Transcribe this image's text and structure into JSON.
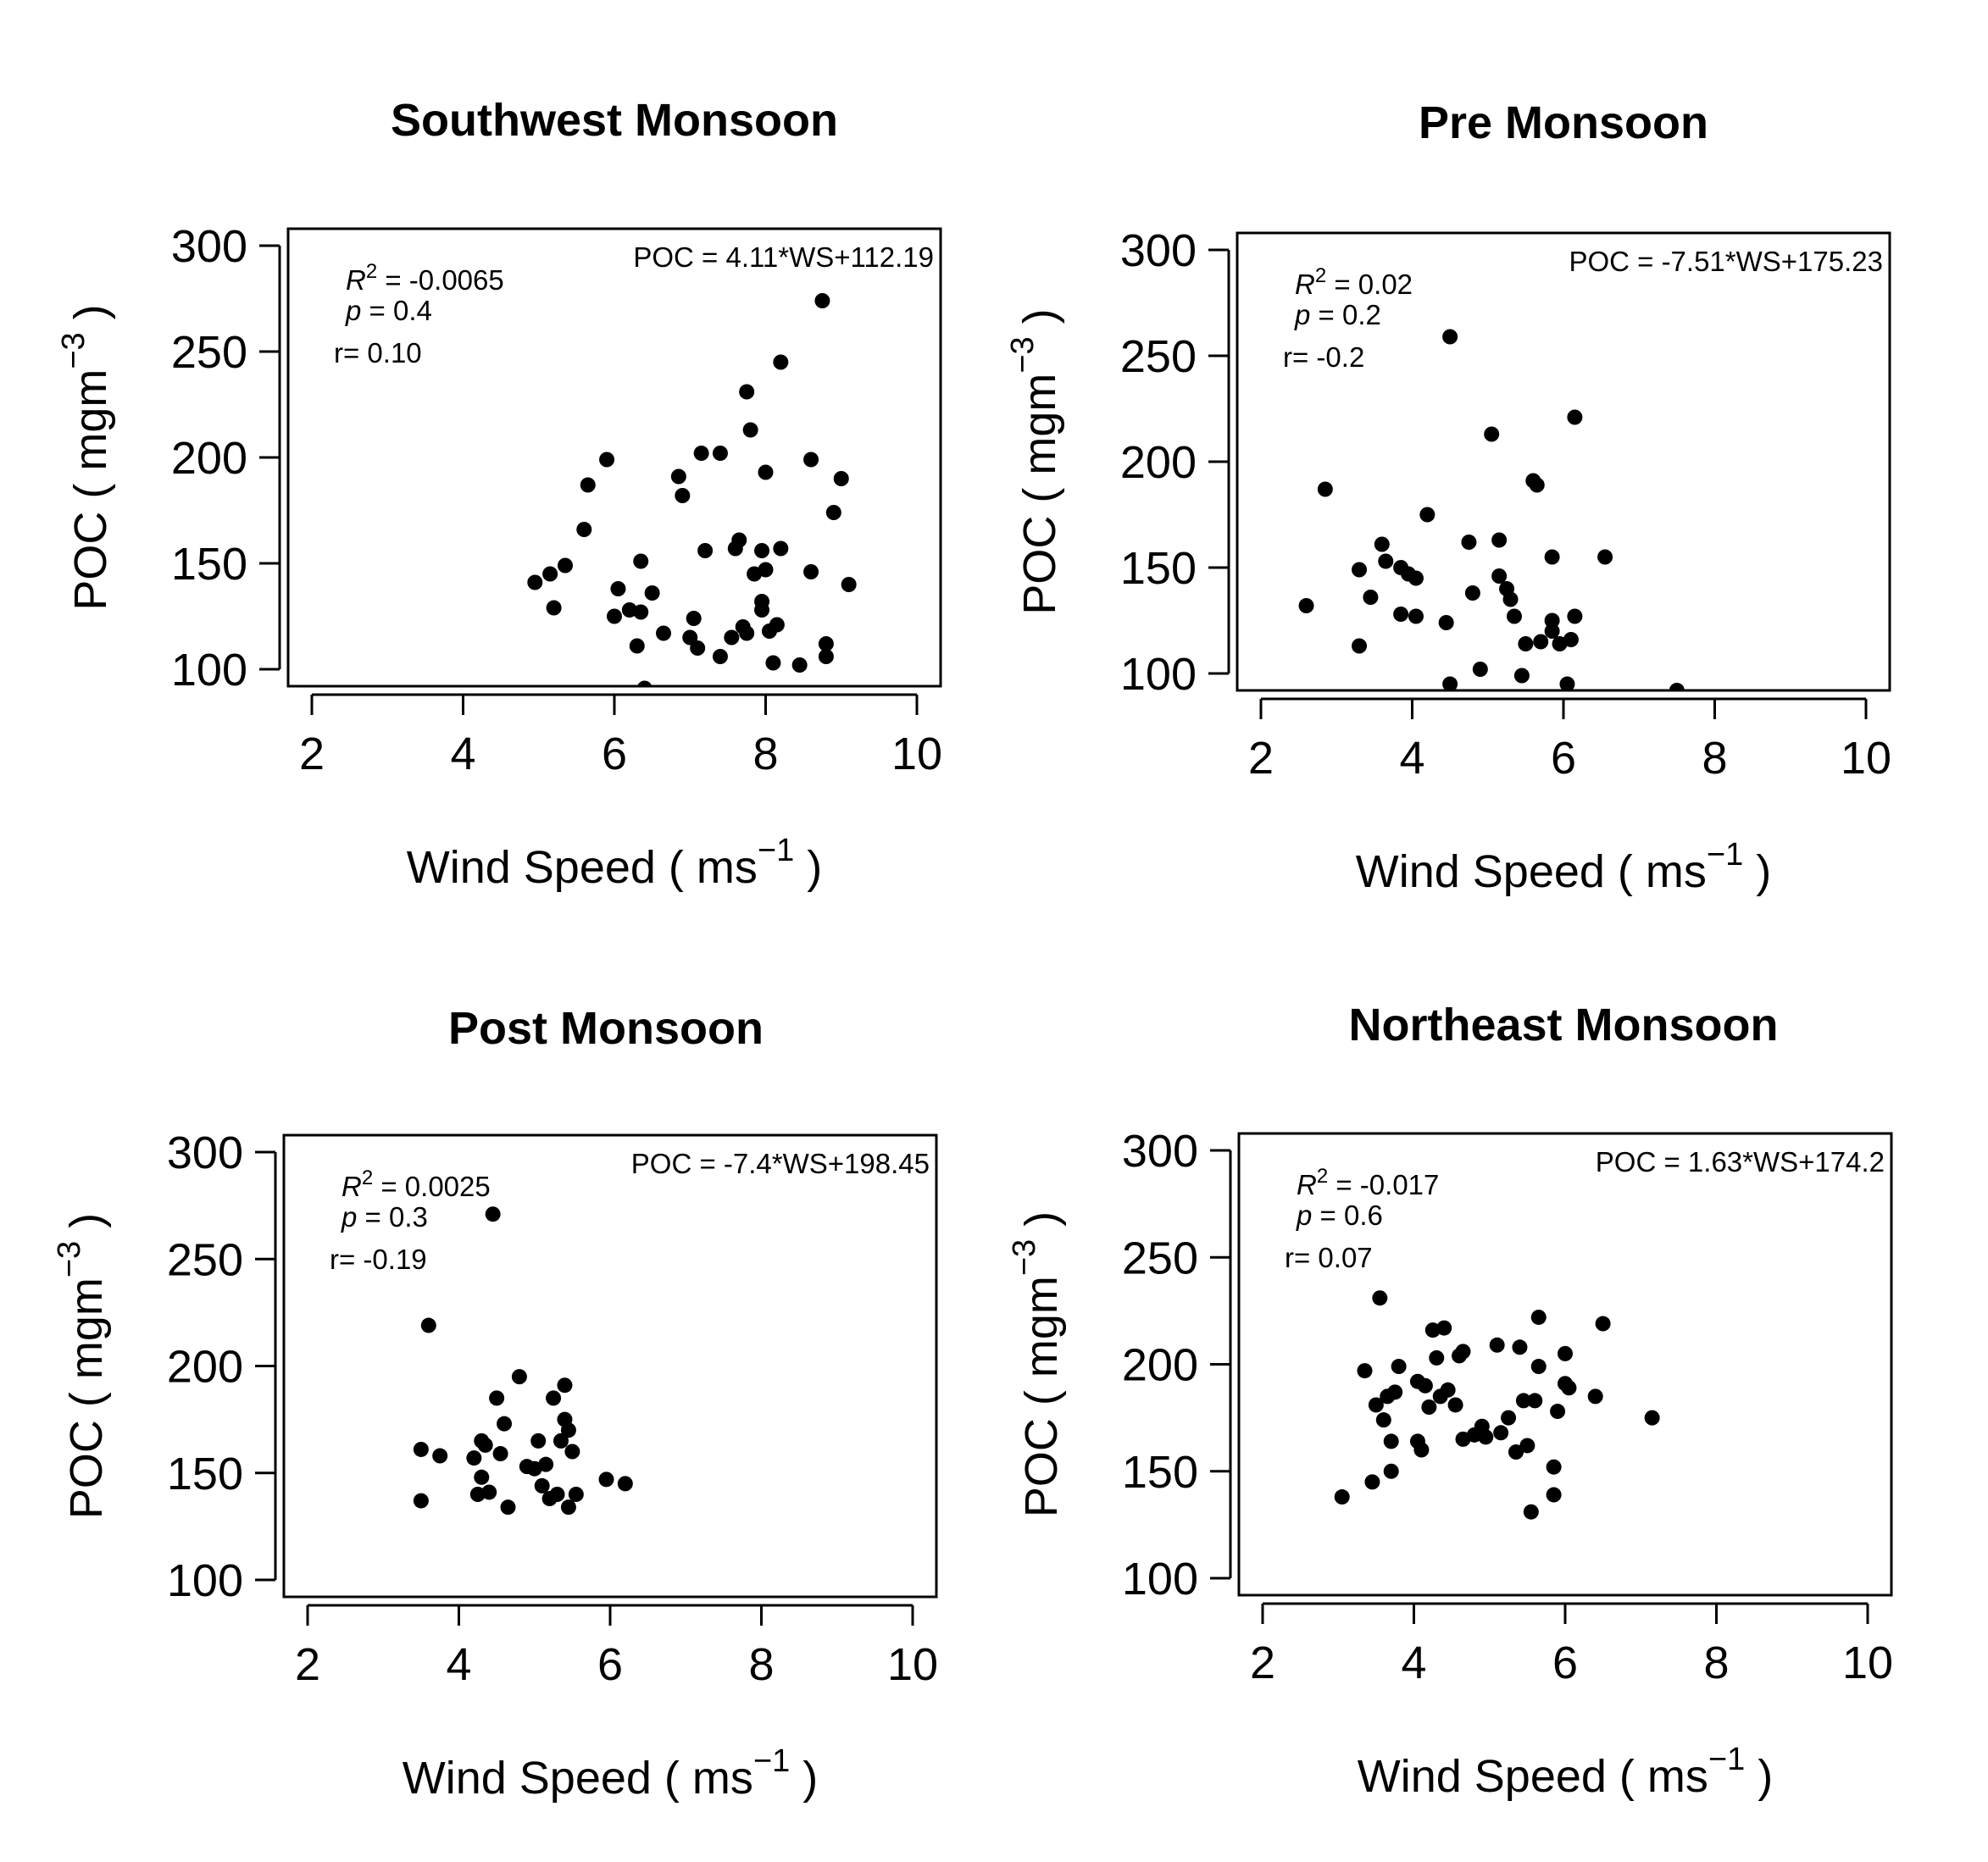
{
  "chart_data": [
    {
      "type": "scatter",
      "title": "Southwest Monsoon",
      "xlabel_main": "Wind Speed ( ms",
      "xlabel_sup": "−1",
      "xlabel_close": " )",
      "ylabel_main": "POC ( mgm",
      "ylabel_sup": "−3",
      "ylabel_close": " )",
      "xlim": [
        2,
        10
      ],
      "ylim": [
        100,
        300
      ],
      "xticks": [
        "2",
        "4",
        "6",
        "8",
        "10"
      ],
      "yticks": [
        "100",
        "150",
        "200",
        "250",
        "300"
      ],
      "r2_label": "R",
      "r2_sup": "2",
      "r2_value": " = -0.0065",
      "p_label": "p",
      "p_value": " = 0.4",
      "r_text": "r= 0.10",
      "equation": "POC = 4.11*WS+112.19",
      "points": [
        [
          4.95,
          141
        ],
        [
          5.15,
          145
        ],
        [
          5.2,
          129
        ],
        [
          5.35,
          149
        ],
        [
          5.6,
          166
        ],
        [
          5.65,
          187
        ],
        [
          5.9,
          199
        ],
        [
          6.0,
          125
        ],
        [
          6.05,
          138
        ],
        [
          6.2,
          128
        ],
        [
          6.3,
          111
        ],
        [
          6.35,
          151
        ],
        [
          6.35,
          127
        ],
        [
          6.5,
          136
        ],
        [
          6.65,
          117
        ],
        [
          6.85,
          191
        ],
        [
          6.9,
          182
        ],
        [
          7.0,
          115
        ],
        [
          7.05,
          124
        ],
        [
          7.1,
          110
        ],
        [
          7.15,
          202
        ],
        [
          7.2,
          156
        ],
        [
          7.4,
          202
        ],
        [
          7.4,
          106
        ],
        [
          7.55,
          115
        ],
        [
          7.6,
          157
        ],
        [
          7.65,
          161
        ],
        [
          7.7,
          120
        ],
        [
          7.75,
          231
        ],
        [
          7.75,
          117
        ],
        [
          7.8,
          213
        ],
        [
          7.85,
          145
        ],
        [
          7.95,
          156
        ],
        [
          7.95,
          132
        ],
        [
          7.95,
          128
        ],
        [
          8.0,
          193
        ],
        [
          8.0,
          147
        ],
        [
          8.05,
          118
        ],
        [
          8.1,
          103
        ],
        [
          8.15,
          121
        ],
        [
          8.2,
          157
        ],
        [
          8.2,
          245
        ],
        [
          8.45,
          102
        ],
        [
          8.6,
          199
        ],
        [
          8.6,
          146
        ],
        [
          8.75,
          274
        ],
        [
          8.8,
          112
        ],
        [
          8.8,
          106
        ],
        [
          8.9,
          174
        ],
        [
          9.0,
          190
        ],
        [
          9.1,
          140
        ],
        [
          6.4,
          91
        ]
      ]
    },
    {
      "type": "scatter",
      "title": "Pre Monsoon",
      "xlabel_main": "Wind Speed ( ms",
      "xlabel_sup": "−1",
      "xlabel_close": " )",
      "ylabel_main": "POC ( mgm",
      "ylabel_sup": "−3",
      "ylabel_close": " )",
      "xlim": [
        2,
        10
      ],
      "ylim": [
        100,
        300
      ],
      "xticks": [
        "2",
        "4",
        "6",
        "8",
        "10"
      ],
      "yticks": [
        "100",
        "150",
        "200",
        "250",
        "300"
      ],
      "r2_label": "R",
      "r2_sup": "2",
      "r2_value": " = 0.02",
      "p_label": "p",
      "p_value": " = 0.2",
      "r_text": "r= -0.2",
      "equation": "POC = -7.51*WS+175.23",
      "points": [
        [
          2.6,
          132
        ],
        [
          2.85,
          187
        ],
        [
          3.3,
          149
        ],
        [
          3.3,
          113
        ],
        [
          3.45,
          136
        ],
        [
          3.6,
          161
        ],
        [
          3.65,
          153
        ],
        [
          3.85,
          150
        ],
        [
          3.85,
          128
        ],
        [
          3.95,
          147
        ],
        [
          4.05,
          127
        ],
        [
          4.05,
          145
        ],
        [
          4.2,
          175
        ],
        [
          4.45,
          124
        ],
        [
          4.5,
          95
        ],
        [
          4.5,
          259
        ],
        [
          4.75,
          162
        ],
        [
          4.8,
          138
        ],
        [
          4.9,
          102
        ],
        [
          5.05,
          213
        ],
        [
          5.15,
          163
        ],
        [
          5.15,
          146
        ],
        [
          5.25,
          140
        ],
        [
          5.3,
          135
        ],
        [
          5.35,
          127
        ],
        [
          5.45,
          99
        ],
        [
          5.5,
          114
        ],
        [
          5.6,
          191
        ],
        [
          5.65,
          189
        ],
        [
          5.7,
          115
        ],
        [
          5.85,
          155
        ],
        [
          5.85,
          125
        ],
        [
          5.85,
          120
        ],
        [
          5.95,
          114
        ],
        [
          6.05,
          95
        ],
        [
          6.1,
          116
        ],
        [
          6.15,
          127
        ],
        [
          6.15,
          221
        ],
        [
          6.55,
          155
        ],
        [
          7.5,
          92
        ]
      ]
    },
    {
      "type": "scatter",
      "title": "Post Monsoon",
      "xlabel_main": "Wind Speed ( ms",
      "xlabel_sup": "−1",
      "xlabel_close": " )",
      "ylabel_main": "POC ( mgm",
      "ylabel_sup": "−3",
      "ylabel_close": " )",
      "xlim": [
        2,
        10
      ],
      "ylim": [
        100,
        300
      ],
      "xticks": [
        "2",
        "4",
        "6",
        "8",
        "10"
      ],
      "yticks": [
        "100",
        "150",
        "200",
        "250",
        "300"
      ],
      "r2_label": "R",
      "r2_sup": "2",
      "r2_value": " = 0.0025",
      "p_label": "p",
      "p_value": " = 0.3",
      "r_text": "r= -0.19",
      "equation": "POC = -7.4*WS+198.45",
      "points": [
        [
          3.5,
          137
        ],
        [
          3.5,
          161
        ],
        [
          3.6,
          219
        ],
        [
          3.75,
          158
        ],
        [
          4.2,
          157
        ],
        [
          4.25,
          140
        ],
        [
          4.3,
          165
        ],
        [
          4.3,
          148
        ],
        [
          4.35,
          163
        ],
        [
          4.4,
          141
        ],
        [
          4.45,
          271
        ],
        [
          4.5,
          185
        ],
        [
          4.55,
          159
        ],
        [
          4.6,
          173
        ],
        [
          4.65,
          134
        ],
        [
          4.8,
          195
        ],
        [
          4.9,
          153
        ],
        [
          5.0,
          152
        ],
        [
          5.05,
          165
        ],
        [
          5.1,
          144
        ],
        [
          5.15,
          154
        ],
        [
          5.2,
          138
        ],
        [
          5.25,
          185
        ],
        [
          5.3,
          140
        ],
        [
          5.35,
          165
        ],
        [
          5.4,
          175
        ],
        [
          5.4,
          191
        ],
        [
          5.45,
          170
        ],
        [
          5.45,
          134
        ],
        [
          5.5,
          160
        ],
        [
          5.55,
          140
        ],
        [
          5.95,
          147
        ],
        [
          6.2,
          145
        ]
      ]
    },
    {
      "type": "scatter",
      "title": "Northeast Monsoon",
      "xlabel_main": "Wind Speed ( ms",
      "xlabel_sup": "−1",
      "xlabel_close": " )",
      "ylabel_main": "POC ( mgm",
      "ylabel_sup": "−3",
      "ylabel_close": " )",
      "xlim": [
        2,
        10
      ],
      "ylim": [
        100,
        300
      ],
      "xticks": [
        "2",
        "4",
        "6",
        "8",
        "10"
      ],
      "yticks": [
        "100",
        "150",
        "200",
        "250",
        "300"
      ],
      "r2_label": "R",
      "r2_sup": "2",
      "r2_value": " = -0.017",
      "p_label": "p",
      "p_value": " = 0.6",
      "r_text": "r= 0.07",
      "equation": "POC = 1.63*WS+174.2",
      "points": [
        [
          3.05,
          138
        ],
        [
          3.35,
          197
        ],
        [
          3.45,
          145
        ],
        [
          3.5,
          181
        ],
        [
          3.55,
          231
        ],
        [
          3.6,
          174
        ],
        [
          3.65,
          185
        ],
        [
          3.7,
          164
        ],
        [
          3.7,
          150
        ],
        [
          3.75,
          187
        ],
        [
          3.8,
          199
        ],
        [
          4.05,
          192
        ],
        [
          4.05,
          164
        ],
        [
          4.1,
          160
        ],
        [
          4.15,
          190
        ],
        [
          4.2,
          180
        ],
        [
          4.25,
          216
        ],
        [
          4.3,
          203
        ],
        [
          4.35,
          185
        ],
        [
          4.4,
          217
        ],
        [
          4.45,
          188
        ],
        [
          4.55,
          181
        ],
        [
          4.6,
          204
        ],
        [
          4.65,
          206
        ],
        [
          4.65,
          165
        ],
        [
          4.8,
          167
        ],
        [
          4.9,
          171
        ],
        [
          4.95,
          166
        ],
        [
          5.1,
          209
        ],
        [
          5.15,
          168
        ],
        [
          5.25,
          175
        ],
        [
          5.35,
          159
        ],
        [
          5.4,
          208
        ],
        [
          5.45,
          183
        ],
        [
          5.5,
          162
        ],
        [
          5.55,
          131
        ],
        [
          5.6,
          183
        ],
        [
          5.65,
          199
        ],
        [
          5.65,
          222
        ],
        [
          5.85,
          152
        ],
        [
          5.85,
          139
        ],
        [
          5.9,
          178
        ],
        [
          6.0,
          205
        ],
        [
          6.0,
          191
        ],
        [
          6.05,
          189
        ],
        [
          6.4,
          185
        ],
        [
          6.5,
          219
        ],
        [
          7.15,
          175
        ]
      ]
    }
  ]
}
